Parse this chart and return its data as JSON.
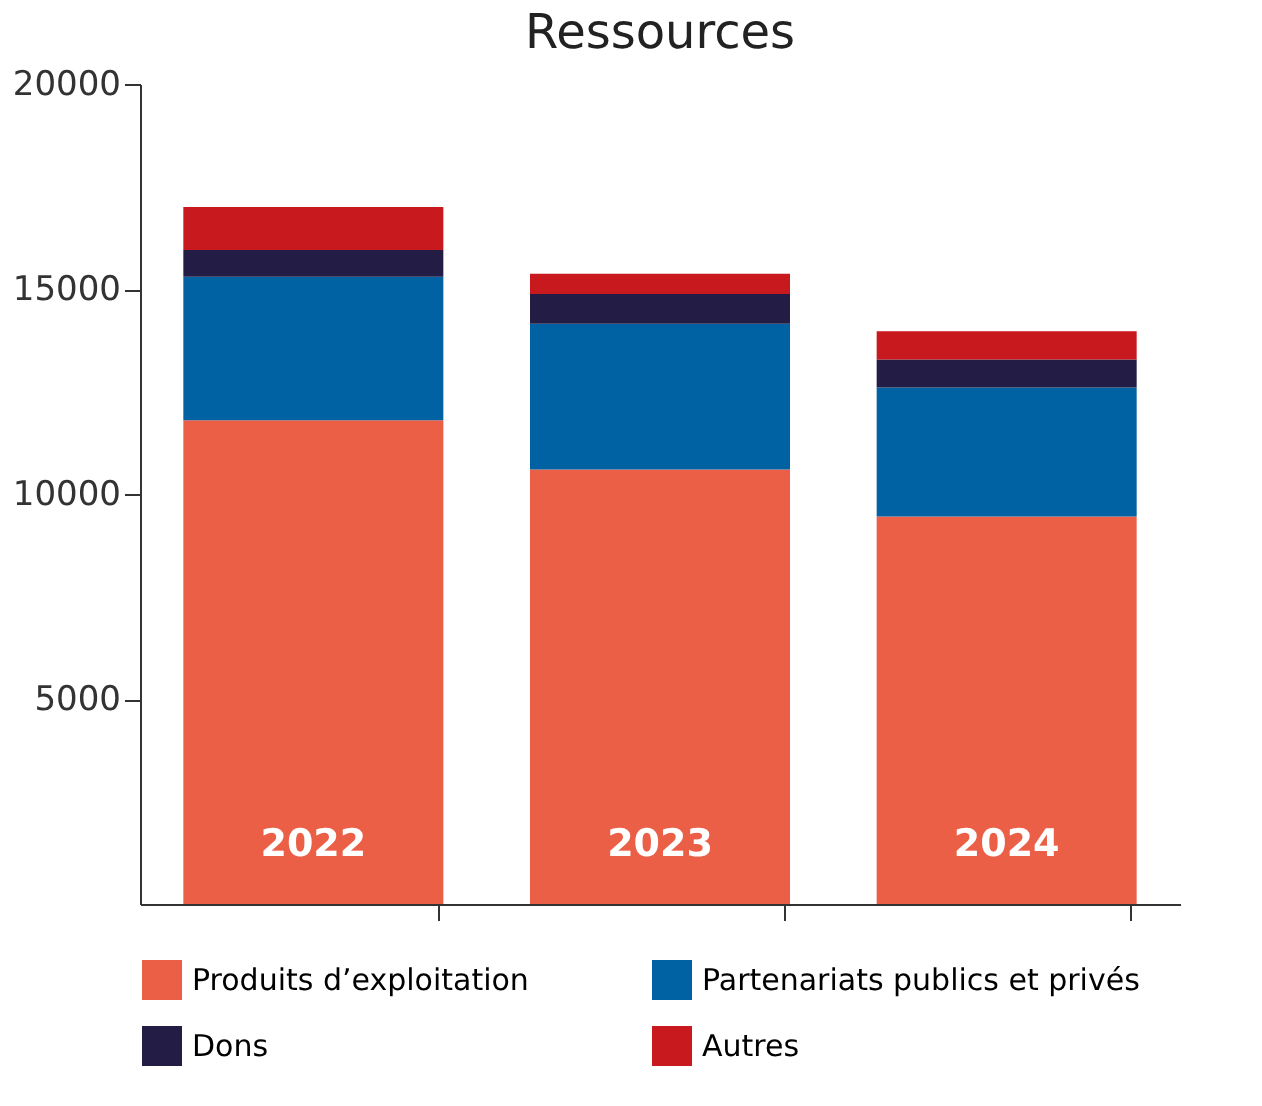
{
  "chart_data": {
    "type": "bar",
    "title": "Ressources",
    "stacked": true,
    "categories": [
      "2022",
      "2023",
      "2024"
    ],
    "series": [
      {
        "name": "Produits d’exploitation",
        "color": "#eb5f46",
        "values": [
          11800,
          10600,
          9450
        ]
      },
      {
        "name": "Partenariats publics et privés",
        "color": "#0062a3",
        "values": [
          3500,
          3550,
          3150
        ]
      },
      {
        "name": "Dons",
        "color": "#231d45",
        "values": [
          650,
          730,
          680
        ]
      },
      {
        "name": "Autres",
        "color": "#c8191e",
        "values": [
          1050,
          490,
          690
        ]
      }
    ],
    "ylim": [
      0,
      20000
    ],
    "yticks": [
      5000,
      10000,
      15000,
      20000
    ],
    "grid": false,
    "legend": "bottom"
  }
}
